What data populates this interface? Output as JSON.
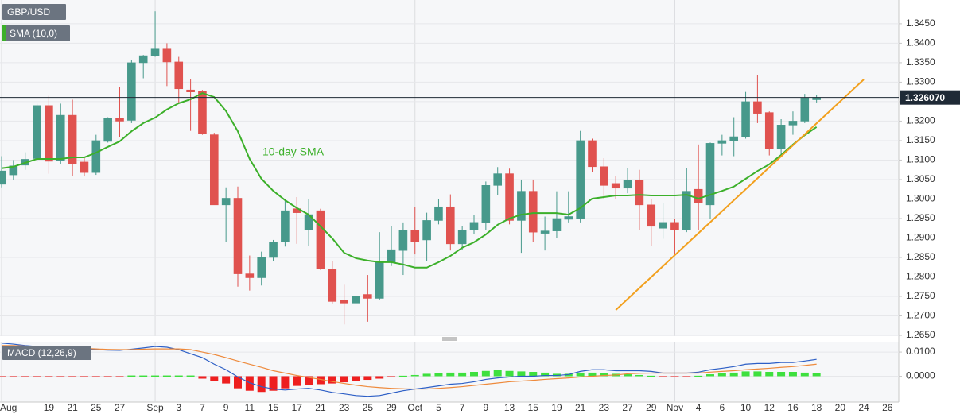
{
  "chart_data": [
    {
      "type": "candlestick",
      "title": "GBP/USD",
      "categories": [
        "Aug",
        null,
        null,
        null,
        "19",
        null,
        "21",
        null,
        "25",
        null,
        "27",
        null,
        null,
        "Sep",
        null,
        "3",
        null,
        "7",
        null,
        "9",
        null,
        "11",
        null,
        "15",
        null,
        "17",
        null,
        "21",
        null,
        "23",
        null,
        "25",
        null,
        "29",
        null,
        "Oct",
        null,
        "5",
        null,
        "7",
        null,
        "9",
        null,
        "13",
        null,
        "15",
        null,
        "19",
        null,
        "21",
        null,
        "23",
        null,
        "27",
        null,
        "29",
        null,
        "Nov",
        null,
        "4",
        null,
        "6",
        null,
        "10",
        null,
        "12",
        null,
        "16",
        null,
        "18",
        null,
        "20",
        null,
        "24",
        null,
        "26"
      ],
      "open": [
        1.3038,
        1.3062,
        1.3087,
        1.3104,
        1.324,
        1.3098,
        1.3215,
        1.3095,
        1.3068,
        1.3148,
        1.3208,
        1.3202,
        1.335,
        1.3368,
        1.3385,
        1.3352,
        1.328,
        1.3277,
        1.3165,
        1.2985,
        1.3002,
        1.2808,
        1.2798,
        1.285,
        1.289,
        1.2975,
        1.292,
        1.297,
        1.282,
        1.274,
        1.2733,
        1.2755,
        1.2745,
        1.2838,
        1.2868,
        1.292,
        1.2895,
        1.2945,
        1.298,
        1.2885,
        1.292,
        1.294,
        1.3035,
        1.3065,
        1.2945,
        1.302,
        1.2912,
        1.2918,
        1.2948,
        1.295,
        1.315,
        1.3083,
        1.304,
        1.3028,
        1.3048,
        1.2985,
        1.2925,
        1.294,
        1.292,
        1.3025,
        1.2985,
        1.3143,
        1.315,
        1.316,
        1.325,
        1.3222,
        1.313,
        1.319,
        1.32,
        1.3255,
        null,
        null,
        null,
        null,
        null,
        null
      ],
      "high": [
        1.311,
        1.31,
        1.312,
        1.3245,
        1.3265,
        1.3245,
        1.3255,
        1.3105,
        1.3165,
        1.321,
        1.3288,
        1.3358,
        1.337,
        1.3482,
        1.34,
        1.3365,
        1.3307,
        1.328,
        1.317,
        1.303,
        1.3032,
        1.2855,
        1.2865,
        1.2895,
        1.3,
        1.3005,
        1.3,
        1.2975,
        1.284,
        1.278,
        1.2785,
        1.2805,
        1.2915,
        1.293,
        1.294,
        1.298,
        1.2965,
        1.3,
        1.3012,
        1.293,
        1.296,
        1.3045,
        1.3082,
        1.3078,
        1.305,
        1.305,
        1.2955,
        1.302,
        1.302,
        1.3175,
        1.3155,
        1.3105,
        1.306,
        1.308,
        1.3075,
        1.3,
        1.299,
        1.295,
        1.308,
        1.314,
        1.3145,
        1.3165,
        1.321,
        1.3275,
        1.3318,
        1.3225,
        1.3205,
        1.3225,
        1.327,
        1.3268,
        null,
        null,
        null,
        null,
        null,
        null
      ],
      "low": [
        1.303,
        1.305,
        1.3075,
        1.3095,
        1.3065,
        1.309,
        1.306,
        1.3058,
        1.3062,
        1.3145,
        1.316,
        1.3195,
        1.331,
        1.3365,
        1.329,
        1.3245,
        1.3175,
        1.3165,
        1.2985,
        1.289,
        1.2775,
        1.2765,
        1.2778,
        1.284,
        1.2878,
        1.2885,
        1.288,
        1.2818,
        1.2732,
        1.2678,
        1.2705,
        1.2685,
        1.274,
        1.2828,
        1.2805,
        1.2858,
        1.284,
        1.2935,
        1.2868,
        1.287,
        1.291,
        1.292,
        1.301,
        1.2935,
        1.2862,
        1.289,
        1.2868,
        1.29,
        1.294,
        1.294,
        1.307,
        1.3,
        1.3,
        1.3015,
        1.292,
        1.288,
        1.2898,
        1.2858,
        1.2915,
        1.292,
        1.295,
        1.3112,
        1.311,
        1.3155,
        1.3195,
        1.3112,
        1.3112,
        1.3165,
        1.3195,
        1.3248,
        null,
        null,
        null,
        null,
        null,
        null
      ],
      "close": [
        1.3072,
        1.3085,
        1.3102,
        1.324,
        1.3097,
        1.3215,
        1.309,
        1.3068,
        1.315,
        1.3208,
        1.32,
        1.335,
        1.3368,
        1.3385,
        1.3352,
        1.3283,
        1.3275,
        1.3168,
        1.2985,
        1.3002,
        1.2808,
        1.2798,
        1.285,
        1.289,
        1.297,
        1.2965,
        1.296,
        1.2822,
        1.2737,
        1.2733,
        1.275,
        1.2745,
        1.2838,
        1.287,
        1.292,
        1.289,
        1.2945,
        1.298,
        1.2885,
        1.292,
        1.294,
        1.3035,
        1.3065,
        1.2945,
        1.302,
        1.2915,
        1.2918,
        1.295,
        1.2955,
        1.315,
        1.3083,
        1.3035,
        1.3028,
        1.3048,
        1.2985,
        1.293,
        1.294,
        1.292,
        1.302,
        1.299,
        1.3143,
        1.315,
        1.316,
        1.325,
        1.322,
        1.313,
        1.319,
        1.32,
        1.326,
        1.3261,
        null,
        null,
        null,
        null,
        null,
        null
      ],
      "up_color": "#47998b",
      "down_color": "#e0524f",
      "overlays": [
        {
          "name": "SMA (10,0)",
          "color": "#3cb02a",
          "values": [
            1.3079,
            1.3083,
            1.3093,
            1.3103,
            1.3103,
            1.3103,
            1.3107,
            1.3107,
            1.3119,
            1.3134,
            1.3148,
            1.3174,
            1.3195,
            1.3209,
            1.323,
            1.3246,
            1.3256,
            1.3272,
            1.3262,
            1.3226,
            1.3174,
            1.3103,
            1.3052,
            1.3021,
            1.2997,
            1.2977,
            1.296,
            1.293,
            1.2899,
            1.2862,
            1.2848,
            1.2842,
            1.2838,
            1.2838,
            1.2832,
            1.2824,
            1.2824,
            1.2838,
            1.2854,
            1.2875,
            1.2889,
            1.2909,
            1.2934,
            1.295,
            1.296,
            1.2964,
            1.2964,
            1.2964,
            1.296,
            1.2977,
            1.3001,
            1.3005,
            1.3009,
            1.3009,
            1.3011,
            1.3009,
            1.3009,
            1.3009,
            1.3011,
            1.3001,
            1.3011,
            1.3021,
            1.3032,
            1.3052,
            1.3072,
            1.3089,
            1.3113,
            1.314,
            1.3164,
            1.3185,
            null,
            null,
            null,
            null,
            null,
            null
          ]
        }
      ],
      "annotations": [
        {
          "text": "10-day SMA",
          "color": "#3cb02a"
        }
      ],
      "trendline": {
        "points": [
          [
            52,
            1.2715
          ],
          [
            73,
            1.3307
          ]
        ],
        "color": "#f2a01e"
      },
      "last_price": {
        "value": 1.32607,
        "label": "1.326070"
      },
      "ylim": [
        1.2648,
        1.3511
      ],
      "yticks": [
        {
          "value": 1.265,
          "label": "1.2650"
        },
        {
          "value": 1.27,
          "label": "1.2700"
        },
        {
          "value": 1.275,
          "label": "1.2750"
        },
        {
          "value": 1.28,
          "label": "1.2800"
        },
        {
          "value": 1.285,
          "label": "1.2850"
        },
        {
          "value": 1.29,
          "label": "1.2900"
        },
        {
          "value": 1.295,
          "label": "1.2950"
        },
        {
          "value": 1.3,
          "label": "1.3000"
        },
        {
          "value": 1.305,
          "label": "1.3050"
        },
        {
          "value": 1.31,
          "label": "1.3100"
        },
        {
          "value": 1.315,
          "label": "1.3150"
        },
        {
          "value": 1.32,
          "label": "1.3200"
        },
        {
          "value": 1.325,
          "label": "1.3250"
        },
        {
          "value": 1.33,
          "label": "1.3300"
        },
        {
          "value": 1.335,
          "label": "1.3350"
        },
        {
          "value": 1.34,
          "label": "1.3400"
        },
        {
          "value": 1.345,
          "label": "1.3450"
        }
      ],
      "grid": true
    },
    {
      "type": "macd",
      "title": "MACD (12,26,9)",
      "series": [
        {
          "color": "#2d5fc6",
          "values": [
            0.0137,
            0.0133,
            0.0127,
            0.0123,
            0.012,
            0.0117,
            0.0115,
            0.0112,
            0.011,
            0.0108,
            0.0107,
            0.0112,
            0.0117,
            0.0123,
            0.012,
            0.011,
            0.0093,
            0.0077,
            0.005,
            0.0027,
            -0.0003,
            -0.0027,
            -0.0043,
            -0.0053,
            -0.0057,
            -0.0053,
            -0.005,
            -0.0057,
            -0.0067,
            -0.0073,
            -0.008,
            -0.0083,
            -0.008,
            -0.007,
            -0.006,
            -0.0053,
            -0.0047,
            -0.004,
            -0.0033,
            -0.003,
            -0.0023,
            -0.0013,
            -0.0007,
            -0.0003,
            0,
            0,
            0.0003,
            0.0003,
            0.0007,
            0.002,
            0.0027,
            0.0027,
            0.0023,
            0.0023,
            0.0023,
            0.002,
            0.0013,
            0.0013,
            0.0013,
            0.0017,
            0.0027,
            0.0033,
            0.004,
            0.005,
            0.0053,
            0.0053,
            0.0057,
            0.0057,
            0.0063,
            0.007,
            null,
            null,
            null,
            null,
            null,
            null
          ]
        },
        {
          "color": "#ee8a3c",
          "values": [
            0.0127,
            0.0127,
            0.0125,
            0.0123,
            0.0122,
            0.012,
            0.0118,
            0.0115,
            0.0113,
            0.0111,
            0.011,
            0.011,
            0.0112,
            0.0113,
            0.0113,
            0.0113,
            0.011,
            0.01,
            0.009,
            0.0077,
            0.0063,
            0.005,
            0.0037,
            0.0023,
            0.0013,
            0.0003,
            -0.0005,
            -0.0013,
            -0.0022,
            -0.003,
            -0.0037,
            -0.0043,
            -0.0047,
            -0.005,
            -0.0052,
            -0.0053,
            -0.0053,
            -0.005,
            -0.0047,
            -0.0043,
            -0.0038,
            -0.0033,
            -0.0028,
            -0.0023,
            -0.002,
            -0.0017,
            -0.0013,
            -0.001,
            -0.0007,
            -0.0003,
            0,
            0.0003,
            0.0005,
            0.001,
            0.0012,
            0.0013,
            0.0013,
            0.0013,
            0.0013,
            0.0013,
            0.0017,
            0.002,
            0.0023,
            0.0027,
            0.003,
            0.0033,
            0.0037,
            0.004,
            0.0045,
            0.005,
            null,
            null,
            null,
            null,
            null,
            null
          ]
        }
      ],
      "histogram": {
        "up_color": "#3ee03e",
        "down_color": "#ee1f1f",
        "values": [
          -0.0003,
          -0.0003,
          -0.0003,
          -0.0003,
          -0.0003,
          -0.0003,
          -0.0003,
          -0.0003,
          -0.0003,
          -0.0003,
          -0.0003,
          0.0003,
          0.0003,
          0.0003,
          0.0003,
          0.0003,
          0.0003,
          -0.001,
          -0.002,
          -0.003,
          -0.005,
          -0.006,
          -0.0065,
          -0.006,
          -0.005,
          -0.004,
          -0.0035,
          -0.0033,
          -0.003,
          -0.0025,
          -0.002,
          -0.0015,
          -0.001,
          -0.0003,
          0.0002,
          0.0005,
          0.001,
          0.0012,
          0.0015,
          0.0015,
          0.0018,
          0.0022,
          0.0025,
          0.0022,
          0.002,
          0.0018,
          0.0015,
          0.001,
          0.001,
          0.0015,
          0.0015,
          0.0012,
          0.001,
          0.0008,
          0.0005,
          0.0002,
          -0.0002,
          -0.0005,
          -0.0002,
          0.0002,
          0.0008,
          0.0012,
          0.0015,
          0.002,
          0.002,
          0.0018,
          0.0018,
          0.0018,
          0.0015,
          0.0012,
          null,
          null,
          null,
          null,
          null,
          null
        ]
      },
      "ylim": [
        -0.0107,
        0.0143
      ],
      "yticks": [
        {
          "value": 0.01,
          "label": "0.0100"
        },
        {
          "value": 0,
          "label": "0.0000"
        }
      ]
    }
  ]
}
